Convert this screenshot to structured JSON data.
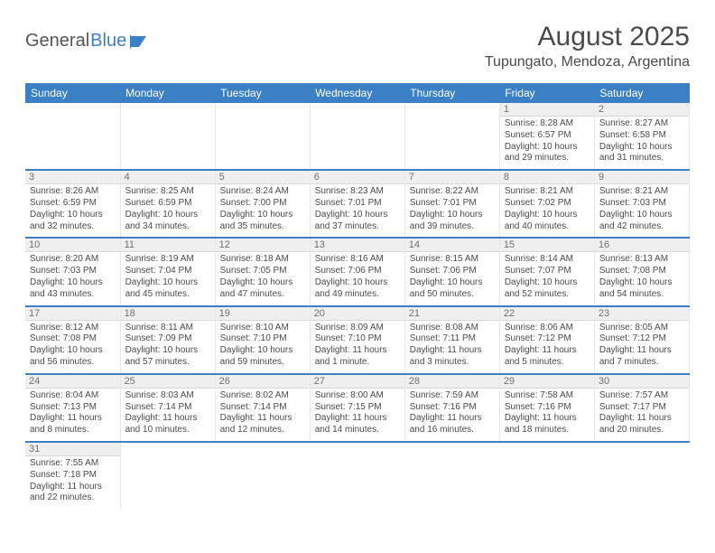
{
  "brand": {
    "part1": "General",
    "part2": "Blue"
  },
  "header": {
    "title": "August 2025",
    "location": "Tupungato, Mendoza, Argentina"
  },
  "colors": {
    "header_bg": "#3b7fc4",
    "row_divider": "#3b7fc4",
    "daynum_bg": "#efefef",
    "text": "#4a4a4a"
  },
  "weekdays": [
    "Sunday",
    "Monday",
    "Tuesday",
    "Wednesday",
    "Thursday",
    "Friday",
    "Saturday"
  ],
  "weeks": [
    [
      null,
      null,
      null,
      null,
      null,
      {
        "n": "1",
        "sunrise": "Sunrise: 8:28 AM",
        "sunset": "Sunset: 6:57 PM",
        "daylight": "Daylight: 10 hours and 29 minutes."
      },
      {
        "n": "2",
        "sunrise": "Sunrise: 8:27 AM",
        "sunset": "Sunset: 6:58 PM",
        "daylight": "Daylight: 10 hours and 31 minutes."
      }
    ],
    [
      {
        "n": "3",
        "sunrise": "Sunrise: 8:26 AM",
        "sunset": "Sunset: 6:59 PM",
        "daylight": "Daylight: 10 hours and 32 minutes."
      },
      {
        "n": "4",
        "sunrise": "Sunrise: 8:25 AM",
        "sunset": "Sunset: 6:59 PM",
        "daylight": "Daylight: 10 hours and 34 minutes."
      },
      {
        "n": "5",
        "sunrise": "Sunrise: 8:24 AM",
        "sunset": "Sunset: 7:00 PM",
        "daylight": "Daylight: 10 hours and 35 minutes."
      },
      {
        "n": "6",
        "sunrise": "Sunrise: 8:23 AM",
        "sunset": "Sunset: 7:01 PM",
        "daylight": "Daylight: 10 hours and 37 minutes."
      },
      {
        "n": "7",
        "sunrise": "Sunrise: 8:22 AM",
        "sunset": "Sunset: 7:01 PM",
        "daylight": "Daylight: 10 hours and 39 minutes."
      },
      {
        "n": "8",
        "sunrise": "Sunrise: 8:21 AM",
        "sunset": "Sunset: 7:02 PM",
        "daylight": "Daylight: 10 hours and 40 minutes."
      },
      {
        "n": "9",
        "sunrise": "Sunrise: 8:21 AM",
        "sunset": "Sunset: 7:03 PM",
        "daylight": "Daylight: 10 hours and 42 minutes."
      }
    ],
    [
      {
        "n": "10",
        "sunrise": "Sunrise: 8:20 AM",
        "sunset": "Sunset: 7:03 PM",
        "daylight": "Daylight: 10 hours and 43 minutes."
      },
      {
        "n": "11",
        "sunrise": "Sunrise: 8:19 AM",
        "sunset": "Sunset: 7:04 PM",
        "daylight": "Daylight: 10 hours and 45 minutes."
      },
      {
        "n": "12",
        "sunrise": "Sunrise: 8:18 AM",
        "sunset": "Sunset: 7:05 PM",
        "daylight": "Daylight: 10 hours and 47 minutes."
      },
      {
        "n": "13",
        "sunrise": "Sunrise: 8:16 AM",
        "sunset": "Sunset: 7:06 PM",
        "daylight": "Daylight: 10 hours and 49 minutes."
      },
      {
        "n": "14",
        "sunrise": "Sunrise: 8:15 AM",
        "sunset": "Sunset: 7:06 PM",
        "daylight": "Daylight: 10 hours and 50 minutes."
      },
      {
        "n": "15",
        "sunrise": "Sunrise: 8:14 AM",
        "sunset": "Sunset: 7:07 PM",
        "daylight": "Daylight: 10 hours and 52 minutes."
      },
      {
        "n": "16",
        "sunrise": "Sunrise: 8:13 AM",
        "sunset": "Sunset: 7:08 PM",
        "daylight": "Daylight: 10 hours and 54 minutes."
      }
    ],
    [
      {
        "n": "17",
        "sunrise": "Sunrise: 8:12 AM",
        "sunset": "Sunset: 7:08 PM",
        "daylight": "Daylight: 10 hours and 56 minutes."
      },
      {
        "n": "18",
        "sunrise": "Sunrise: 8:11 AM",
        "sunset": "Sunset: 7:09 PM",
        "daylight": "Daylight: 10 hours and 57 minutes."
      },
      {
        "n": "19",
        "sunrise": "Sunrise: 8:10 AM",
        "sunset": "Sunset: 7:10 PM",
        "daylight": "Daylight: 10 hours and 59 minutes."
      },
      {
        "n": "20",
        "sunrise": "Sunrise: 8:09 AM",
        "sunset": "Sunset: 7:10 PM",
        "daylight": "Daylight: 11 hours and 1 minute."
      },
      {
        "n": "21",
        "sunrise": "Sunrise: 8:08 AM",
        "sunset": "Sunset: 7:11 PM",
        "daylight": "Daylight: 11 hours and 3 minutes."
      },
      {
        "n": "22",
        "sunrise": "Sunrise: 8:06 AM",
        "sunset": "Sunset: 7:12 PM",
        "daylight": "Daylight: 11 hours and 5 minutes."
      },
      {
        "n": "23",
        "sunrise": "Sunrise: 8:05 AM",
        "sunset": "Sunset: 7:12 PM",
        "daylight": "Daylight: 11 hours and 7 minutes."
      }
    ],
    [
      {
        "n": "24",
        "sunrise": "Sunrise: 8:04 AM",
        "sunset": "Sunset: 7:13 PM",
        "daylight": "Daylight: 11 hours and 8 minutes."
      },
      {
        "n": "25",
        "sunrise": "Sunrise: 8:03 AM",
        "sunset": "Sunset: 7:14 PM",
        "daylight": "Daylight: 11 hours and 10 minutes."
      },
      {
        "n": "26",
        "sunrise": "Sunrise: 8:02 AM",
        "sunset": "Sunset: 7:14 PM",
        "daylight": "Daylight: 11 hours and 12 minutes."
      },
      {
        "n": "27",
        "sunrise": "Sunrise: 8:00 AM",
        "sunset": "Sunset: 7:15 PM",
        "daylight": "Daylight: 11 hours and 14 minutes."
      },
      {
        "n": "28",
        "sunrise": "Sunrise: 7:59 AM",
        "sunset": "Sunset: 7:16 PM",
        "daylight": "Daylight: 11 hours and 16 minutes."
      },
      {
        "n": "29",
        "sunrise": "Sunrise: 7:58 AM",
        "sunset": "Sunset: 7:16 PM",
        "daylight": "Daylight: 11 hours and 18 minutes."
      },
      {
        "n": "30",
        "sunrise": "Sunrise: 7:57 AM",
        "sunset": "Sunset: 7:17 PM",
        "daylight": "Daylight: 11 hours and 20 minutes."
      }
    ],
    [
      {
        "n": "31",
        "sunrise": "Sunrise: 7:55 AM",
        "sunset": "Sunset: 7:18 PM",
        "daylight": "Daylight: 11 hours and 22 minutes."
      },
      null,
      null,
      null,
      null,
      null,
      null
    ]
  ]
}
